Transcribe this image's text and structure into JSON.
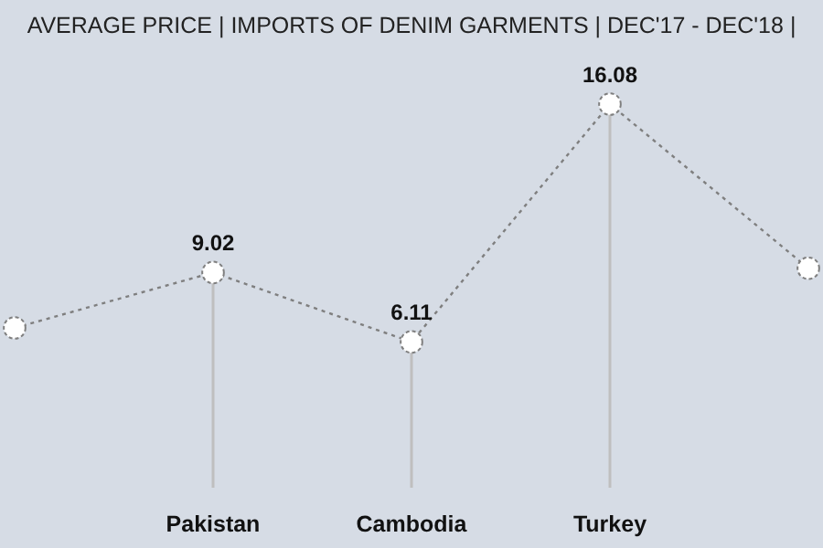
{
  "chart_data": {
    "type": "line",
    "title": "AVERAGE PRICE | IMPORTS OF DENIM GARMENTS | DEC'17 - DEC'18 |",
    "categories": [
      null,
      "Pakistan",
      "Cambodia",
      "Turkey",
      null
    ],
    "values": [
      6.7,
      9.02,
      6.11,
      16.08,
      9.2
    ],
    "value_labels": [
      null,
      "9.02",
      "6.11",
      "16.08",
      null
    ],
    "color": "#7f7f7f",
    "marker": "circle",
    "line_style": "dotted",
    "tick_labels": "x",
    "grid": "x"
  }
}
